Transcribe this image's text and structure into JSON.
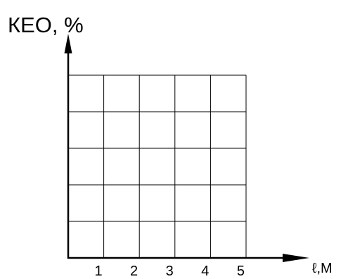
{
  "chart_data": {
    "type": "line",
    "title": "",
    "xlabel": "ℓ,M",
    "ylabel": "КЕО, %",
    "x_ticks": [
      "1",
      "2",
      "3",
      "4",
      "5"
    ],
    "xlim": [
      0,
      5
    ],
    "y_divisions": 5,
    "grid": true,
    "series": []
  },
  "colors": {
    "axis": "#000000",
    "grid": "#000000",
    "background": "#ffffff"
  }
}
